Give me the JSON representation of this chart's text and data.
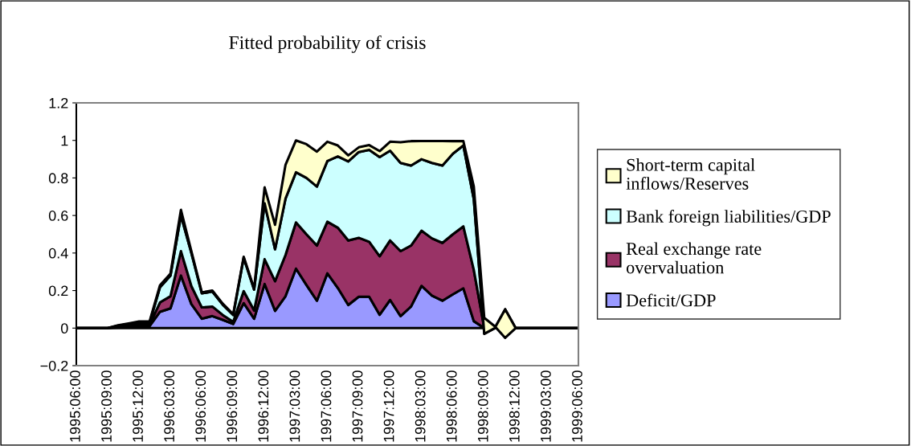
{
  "chart_data": {
    "type": "area",
    "title": "Fitted probability of crisis",
    "stacked": true,
    "categories": [
      "1995:06:00",
      null,
      null,
      "1995:09:00",
      null,
      null,
      "1995:12:00",
      null,
      null,
      "1996:03:00",
      null,
      null,
      "1996:06:00",
      null,
      null,
      "1996:09:00",
      null,
      null,
      "1996:12:00",
      null,
      null,
      "1997:03:00",
      null,
      null,
      "1997:06:00",
      null,
      null,
      "1997:09:00",
      null,
      null,
      "1997:12:00",
      null,
      null,
      "1998:03:00",
      null,
      null,
      "1998:06:00",
      null,
      null,
      "1998:09:00",
      null,
      null,
      "1998:12:00",
      null,
      null,
      "1999:03:00",
      null,
      null,
      "1999:06:00"
    ],
    "series": [
      {
        "name": "Deficit/GDP",
        "color": "#9999ff",
        "values": [
          0,
          0,
          0,
          0,
          0.004,
          0.008,
          0.01,
          0.01,
          0.087,
          0.105,
          0.28,
          0.128,
          0.05,
          0.064,
          0.044,
          0.022,
          0.133,
          0.05,
          0.235,
          0.092,
          0.17,
          0.317,
          0.23,
          0.146,
          0.292,
          0.214,
          0.123,
          0.167,
          0.167,
          0.071,
          0.15,
          0.064,
          0.115,
          0.225,
          0.173,
          0.146,
          0.18,
          0.212,
          0.037,
          0,
          0,
          0,
          0,
          0,
          0,
          0,
          0,
          0,
          0
        ]
      },
      {
        "name": "Real exchange rate overvaluation",
        "color": "#993366",
        "values": [
          0,
          0,
          0,
          0,
          0.004,
          0.007,
          0.01,
          0.008,
          0.05,
          0.065,
          0.13,
          0.096,
          0.06,
          0.051,
          0.026,
          0.011,
          0.064,
          0.044,
          0.132,
          0.158,
          0.22,
          0.246,
          0.27,
          0.294,
          0.275,
          0.321,
          0.344,
          0.314,
          0.293,
          0.312,
          0.317,
          0.346,
          0.325,
          0.294,
          0.305,
          0.308,
          0.32,
          0.33,
          0.273,
          0,
          0,
          0,
          0,
          0,
          0,
          0,
          0,
          0,
          0
        ]
      },
      {
        "name": "Bank foreign liabilities/GDP",
        "color": "#ccffff",
        "values": [
          0,
          0,
          0,
          0,
          0.005,
          0.007,
          0.01,
          0.01,
          0.081,
          0.11,
          0.19,
          0.176,
          0.075,
          0.08,
          0.055,
          0.037,
          0.178,
          0.111,
          0.298,
          0.17,
          0.3,
          0.267,
          0.3,
          0.314,
          0.323,
          0.38,
          0.421,
          0.457,
          0.49,
          0.528,
          0.478,
          0.47,
          0.426,
          0.381,
          0.402,
          0.412,
          0.429,
          0.431,
          0.376,
          -0.03,
          0,
          0.1,
          0,
          0,
          0,
          0,
          0,
          0,
          0
        ]
      },
      {
        "name": "Short-term capital inflows/Reserves",
        "color": "#ffffcc",
        "values": [
          0,
          0,
          0,
          0,
          0.002,
          0.003,
          0.005,
          0.007,
          0.01,
          0.01,
          0.03,
          0.01,
          0.005,
          0.005,
          0.005,
          0.004,
          0.005,
          0.005,
          0.085,
          0.13,
          0.18,
          0.17,
          0.18,
          0.186,
          0.103,
          0.058,
          0.032,
          0.025,
          0.025,
          0.032,
          0.048,
          0.11,
          0.13,
          0.097,
          0.117,
          0.131,
          0.067,
          0.023,
          0.068,
          0.085,
          0.01,
          -0.152,
          0,
          0,
          0,
          0,
          0,
          0,
          0
        ]
      }
    ],
    "ylim": [
      -0.2,
      1.2
    ],
    "yticks": [
      {
        "value": -0.2,
        "label": "−0.2"
      },
      0,
      0.2,
      0.4,
      0.6,
      0.8,
      1,
      1.2
    ],
    "grid": false,
    "legend": "right"
  }
}
